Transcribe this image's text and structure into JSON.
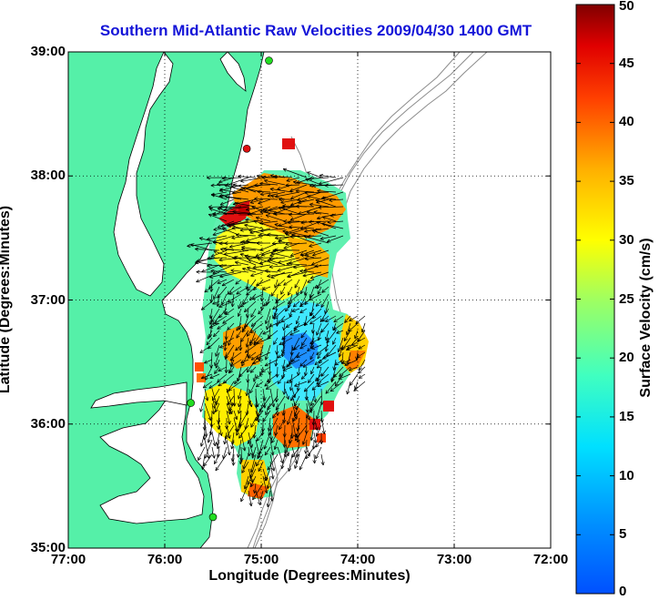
{
  "title": "Southern Mid-Atlantic Raw Velocities 2009/04/30 1400 GMT",
  "xlabel": "Longitude (Degrees:Minutes)",
  "ylabel": "Latitude (Degrees:Minutes)",
  "x_ticks": [
    "77:00",
    "76:00",
    "75:00",
    "74:00",
    "73:00",
    "72:00"
  ],
  "y_ticks": [
    "39:00",
    "38:00",
    "37:00",
    "36:00",
    "35:00"
  ],
  "colorbar": {
    "label": "Surface Velocity (cm/s)",
    "ticks": [
      "0",
      "5",
      "10",
      "15",
      "20",
      "25",
      "30",
      "35",
      "40",
      "45",
      "50"
    ],
    "range": [
      0,
      50
    ]
  },
  "colors": {
    "title": "#1414d8",
    "land": "#55f0a8",
    "coastline": "#000000",
    "bathymetry": "#8c8c8c",
    "station_green": "#22dd22",
    "station_red": "#e01010"
  },
  "chart_data": {
    "type": "heatmap",
    "xlim": [
      -77,
      -72
    ],
    "ylim": [
      35,
      39
    ],
    "grid": true,
    "stations": [
      {
        "lon": -74.92,
        "lat": 38.93,
        "color": "green"
      },
      {
        "lon": -75.15,
        "lat": 38.22,
        "color": "red"
      },
      {
        "lon": -75.73,
        "lat": 36.17,
        "color": "green"
      },
      {
        "lon": -75.5,
        "lat": 35.25,
        "color": "green"
      }
    ]
  }
}
